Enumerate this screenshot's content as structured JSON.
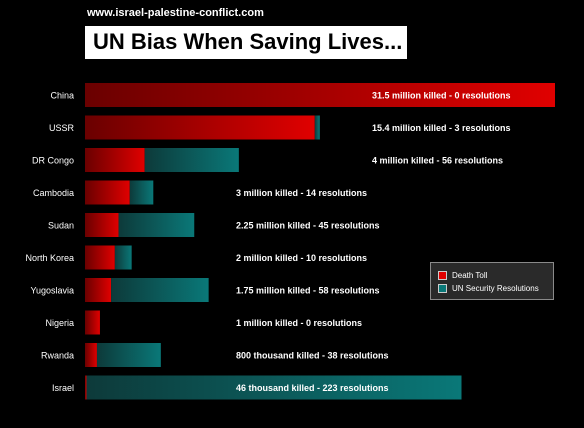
{
  "site_url": "www.israel-palestine-conflict.com",
  "title": "UN Bias When Saving Lives...",
  "colors": {
    "death_toll": "#e00000",
    "death_toll_dark": "#6a0000",
    "resolutions": "#0a7878",
    "resolutions_dark": "#0d3a3a",
    "background": "#000000"
  },
  "chart_data": {
    "type": "bar",
    "orientation": "horizontal",
    "stacked": true,
    "categories": [
      "China",
      "USSR",
      "DR Congo",
      "Cambodia",
      "Sudan",
      "North Korea",
      "Yugoslavia",
      "Nigeria",
      "Rwanda",
      "Israel"
    ],
    "series": [
      {
        "name": "Death Toll",
        "values": [
          31.5,
          15.4,
          4,
          3,
          2.25,
          2,
          1.75,
          1,
          0.8,
          0.046
        ]
      },
      {
        "name": "UN Security Resolutions",
        "values": [
          0,
          3,
          56,
          14,
          45,
          10,
          58,
          0,
          38,
          223
        ]
      }
    ],
    "data_labels": [
      "31.5 million killed - 0 resolutions",
      "15.4 million killed - 3 resolutions",
      "4 million killed - 56 resolutions",
      "3 million killed - 14 resolutions",
      "2.25 million killed - 45 resolutions",
      "2 million killed - 10 resolutions",
      "1.75 million killed - 58 resolutions",
      "1 million killed - 0 resolutions",
      "800 thousand killed - 38 resolutions",
      "46 thousand killed - 223 resolutions"
    ],
    "legend": [
      "Death Toll",
      "UN Security Resolutions"
    ],
    "legend_position": "right",
    "grid": false
  }
}
